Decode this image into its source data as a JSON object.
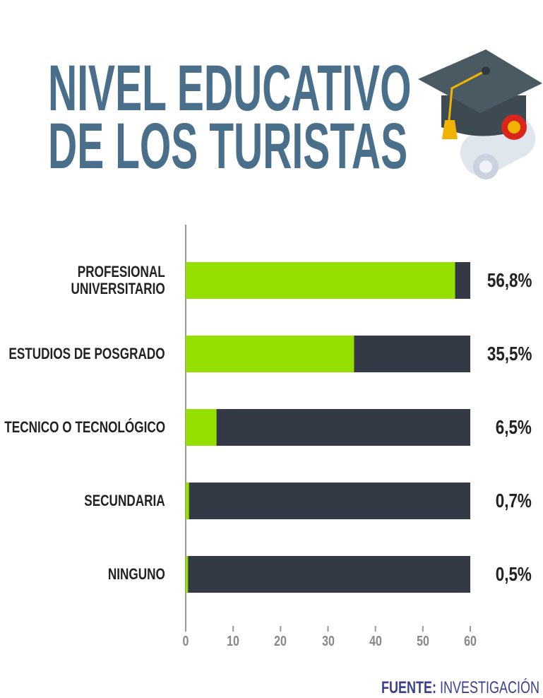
{
  "chart_data": {
    "type": "barh",
    "title": "NIVEL EDUCATIVO\nDE LOS TURISTAS",
    "categories": [
      "PROFESIONAL\nUNIVERSITARIO",
      "ESTUDIOS DE POSGRADO",
      "TECNICO O TECNOLÓGICO",
      "SECUNDARIA",
      "NINGUNO"
    ],
    "values": [
      56.8,
      35.5,
      6.5,
      0.7,
      0.5
    ],
    "value_labels": [
      "56,8%",
      "35,5%",
      "6,5%",
      "0,7%",
      "0,5%"
    ],
    "color": "#95e000",
    "track_color": "#343a45",
    "xlim": [
      0,
      60
    ],
    "xticks": [
      0,
      10,
      20,
      30,
      40,
      50,
      60
    ],
    "source_label": "FUENTE:",
    "source": "INVESTIGACIÓN D"
  }
}
